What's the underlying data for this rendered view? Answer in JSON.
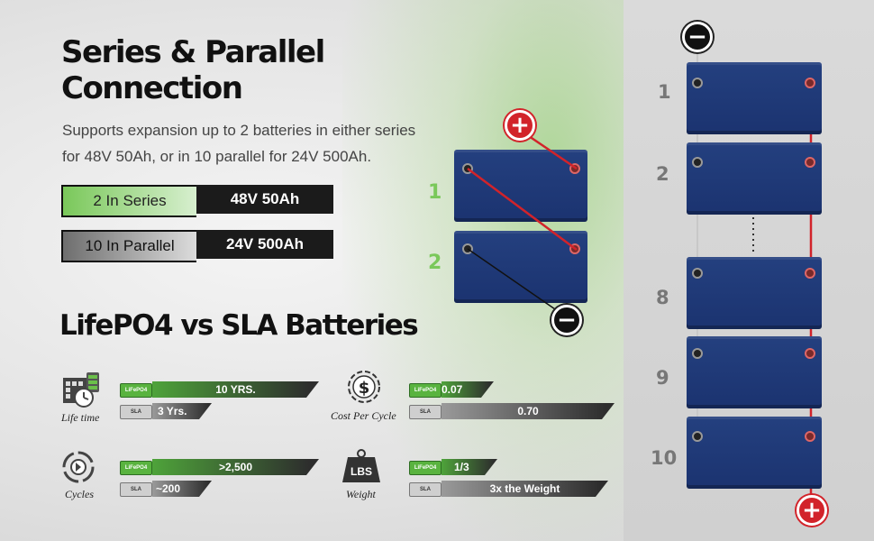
{
  "title": {
    "line1": "Series & Parallel",
    "line2": "Connection"
  },
  "description": {
    "line1": "Supports expansion up to 2 batteries in either series",
    "line2": "for 48V 50Ah, or in 10 parallel for 24V 500Ah."
  },
  "configs": [
    {
      "label": "2 In Series",
      "value": "48V 50Ah"
    },
    {
      "label": "10 In Parallel",
      "value": "24V 500Ah"
    }
  ],
  "compare_title": "LifePO4 vs SLA Batteries",
  "tags": {
    "lifepo4": "LiFePO4",
    "sla": "SLA"
  },
  "comparisons": [
    {
      "label": "Life time",
      "icon": "calendar-clock-icon",
      "lifepo4": "10 YRS.",
      "sla": "3 Yrs."
    },
    {
      "label": "Cost Per Cycle",
      "icon": "dollar-icon",
      "lifepo4": "0.07",
      "sla": "0.70"
    },
    {
      "label": "Cycles",
      "icon": "cycle-icon",
      "lifepo4": ">2,500",
      "sla": "~200"
    },
    {
      "label": "Weight",
      "icon": "weight-icon",
      "lifepo4": "1/3",
      "sla": "3x the Weight",
      "icon_text": "LBS"
    }
  ],
  "series_labels": [
    "1",
    "2"
  ],
  "parallel_labels": [
    "1",
    "2",
    "8",
    "9",
    "10"
  ],
  "signs": {
    "positive": "+",
    "negative": "−"
  },
  "colors": {
    "accent_green": "#7ac85a",
    "battery_blue": "#1f3a78",
    "positive_red": "#d2232a"
  }
}
